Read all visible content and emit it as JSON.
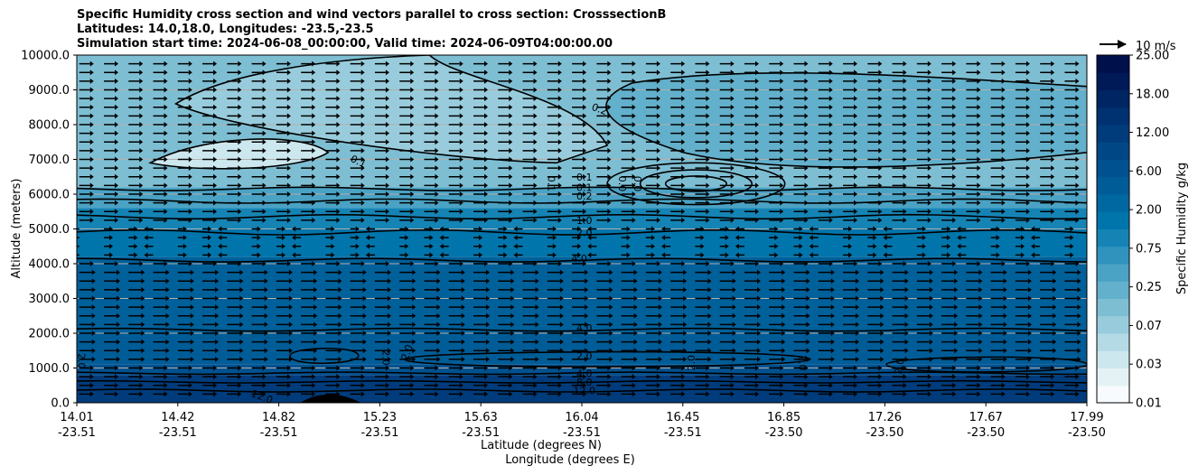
{
  "chart_data": {
    "type": "contour-cross-section",
    "title_lines": [
      "Specific Humidity cross section and wind vectors parallel to cross section: CrosssectionB",
      "Latitudes: 14.0,18.0, Longitudes: -23.5,-23.5",
      "Simulation start time: 2024-06-08_00:00:00, Valid time: 2024-06-09T04:00:00.00"
    ],
    "xlabel_lat": "Latitude (degrees N)",
    "xlabel_lon": "Longitude (degrees E)",
    "ylabel": "Altitude (meters)",
    "ylim": [
      0,
      10000
    ],
    "grid": "horizontal",
    "x_ticks": [
      {
        "lat": "14.01",
        "lon": "-23.51"
      },
      {
        "lat": "14.42",
        "lon": "-23.51"
      },
      {
        "lat": "14.82",
        "lon": "-23.51"
      },
      {
        "lat": "15.23",
        "lon": "-23.51"
      },
      {
        "lat": "15.63",
        "lon": "-23.51"
      },
      {
        "lat": "16.04",
        "lon": "-23.51"
      },
      {
        "lat": "16.45",
        "lon": "-23.51"
      },
      {
        "lat": "16.85",
        "lon": "-23.50"
      },
      {
        "lat": "17.26",
        "lon": "-23.50"
      },
      {
        "lat": "17.67",
        "lon": "-23.50"
      },
      {
        "lat": "17.99",
        "lon": "-23.50"
      }
    ],
    "y_ticks": [
      "0.0",
      "1000.0",
      "2000.0",
      "3000.0",
      "4000.0",
      "5000.0",
      "6000.0",
      "7000.0",
      "8000.0",
      "9000.0",
      "10000.0"
    ],
    "y_tick_values": [
      0,
      1000,
      2000,
      3000,
      4000,
      5000,
      6000,
      7000,
      8000,
      9000,
      10000
    ],
    "colorbar": {
      "label": "Specific Humidity g/kg",
      "tick_labels": [
        "0.01",
        "0.03",
        "0.07",
        "0.25",
        "0.75",
        "2.00",
        "6.00",
        "12.00",
        "18.00",
        "25.00"
      ],
      "colors": [
        "#f7fbfd",
        "#e4f2f5",
        "#cde7ee",
        "#b3dae5",
        "#98ccdc",
        "#7ebed3",
        "#62b0cb",
        "#4aa2c4",
        "#2f93bd",
        "#1584b5",
        "#0075ab",
        "#0068a0",
        "#005c97",
        "#00518f",
        "#004786",
        "#003c7c",
        "#003170",
        "#002563",
        "#001957",
        "#00104b"
      ]
    },
    "quiver_key": "10 m/s",
    "humidity_layers": [
      {
        "top_m": 800,
        "value_gkg": 12.0,
        "color": "#003c7c"
      },
      {
        "top_m": 1100,
        "value_gkg": 6.0,
        "color": "#00518f"
      },
      {
        "top_m": 2000,
        "value_gkg": 4.0,
        "color": "#005c97"
      },
      {
        "top_m": 4200,
        "value_gkg": 4.0,
        "color": "#00609a"
      },
      {
        "top_m": 5000,
        "value_gkg": 2.0,
        "color": "#0075ab"
      },
      {
        "top_m": 5600,
        "value_gkg": 1.0,
        "color": "#1584b5"
      },
      {
        "top_m": 6200,
        "value_gkg": 0.25,
        "color": "#4aa2c4"
      },
      {
        "top_m": 10000,
        "value_gkg": 0.1,
        "color": "#7ebed3"
      }
    ],
    "contour_labels": [
      {
        "text": "0.1",
        "lat": 15.12,
        "alt": 6950,
        "angle": 25
      },
      {
        "text": "0.1",
        "lat": 16.01,
        "alt": 6500,
        "angle": 0
      },
      {
        "text": "0.1",
        "lat": 15.88,
        "alt": 6300,
        "angle": 90
      },
      {
        "text": "0.1",
        "lat": 16.01,
        "alt": 6200,
        "angle": 0
      },
      {
        "text": "0.2",
        "lat": 16.01,
        "alt": 5950,
        "angle": 0
      },
      {
        "text": "0.0",
        "lat": 16.16,
        "alt": 6300,
        "angle": 90
      },
      {
        "text": "0.0",
        "lat": 16.22,
        "alt": 6300,
        "angle": 90
      },
      {
        "text": "0.2",
        "lat": 16.07,
        "alt": 8450,
        "angle": 20
      },
      {
        "text": "1.0",
        "lat": 16.01,
        "alt": 5250,
        "angle": 0
      },
      {
        "text": "2.0",
        "lat": 16.01,
        "alt": 4900,
        "angle": 0
      },
      {
        "text": "4.0",
        "lat": 15.99,
        "alt": 4150,
        "angle": 0
      },
      {
        "text": "4.0",
        "lat": 16.01,
        "alt": 2150,
        "angle": 0
      },
      {
        "text": "2.0",
        "lat": 16.01,
        "alt": 1350,
        "angle": 0
      },
      {
        "text": "2.0",
        "lat": 14.03,
        "alt": 1200,
        "angle": 90
      },
      {
        "text": "2.0",
        "lat": 15.23,
        "alt": 1300,
        "angle": 90
      },
      {
        "text": "2.0",
        "lat": 15.31,
        "alt": 1450,
        "angle": -70
      },
      {
        "text": "2.0",
        "lat": 16.43,
        "alt": 1150,
        "angle": -90
      },
      {
        "text": "2.0",
        "lat": 16.87,
        "alt": 1150,
        "angle": 90
      },
      {
        "text": "2.0",
        "lat": 17.25,
        "alt": 1050,
        "angle": -80
      },
      {
        "text": "4.0",
        "lat": 16.01,
        "alt": 850,
        "angle": 0
      },
      {
        "text": "8.0",
        "lat": 16.01,
        "alt": 600,
        "angle": 0
      },
      {
        "text": "12.0",
        "lat": 16.01,
        "alt": 350,
        "angle": 0
      },
      {
        "text": "12.0",
        "lat": 14.74,
        "alt": 180,
        "angle": 20
      }
    ],
    "terrain": {
      "lat_start": 14.89,
      "lat_end": 15.13,
      "peak_lat": 15.0,
      "peak_alt_m": 300
    },
    "wind_vector_rows_m": [
      250,
      500,
      750,
      1000,
      1250,
      1500,
      1750,
      2000,
      2250,
      2500,
      2750,
      3000,
      3250,
      3500,
      3750,
      4000,
      4250,
      4500,
      4750,
      5000,
      5250,
      5500,
      5750,
      6000,
      6250,
      6500,
      6750,
      7000,
      7250,
      7500,
      7750,
      8000,
      8250,
      8500,
      8750,
      9000,
      9250,
      9500,
      9750
    ]
  }
}
